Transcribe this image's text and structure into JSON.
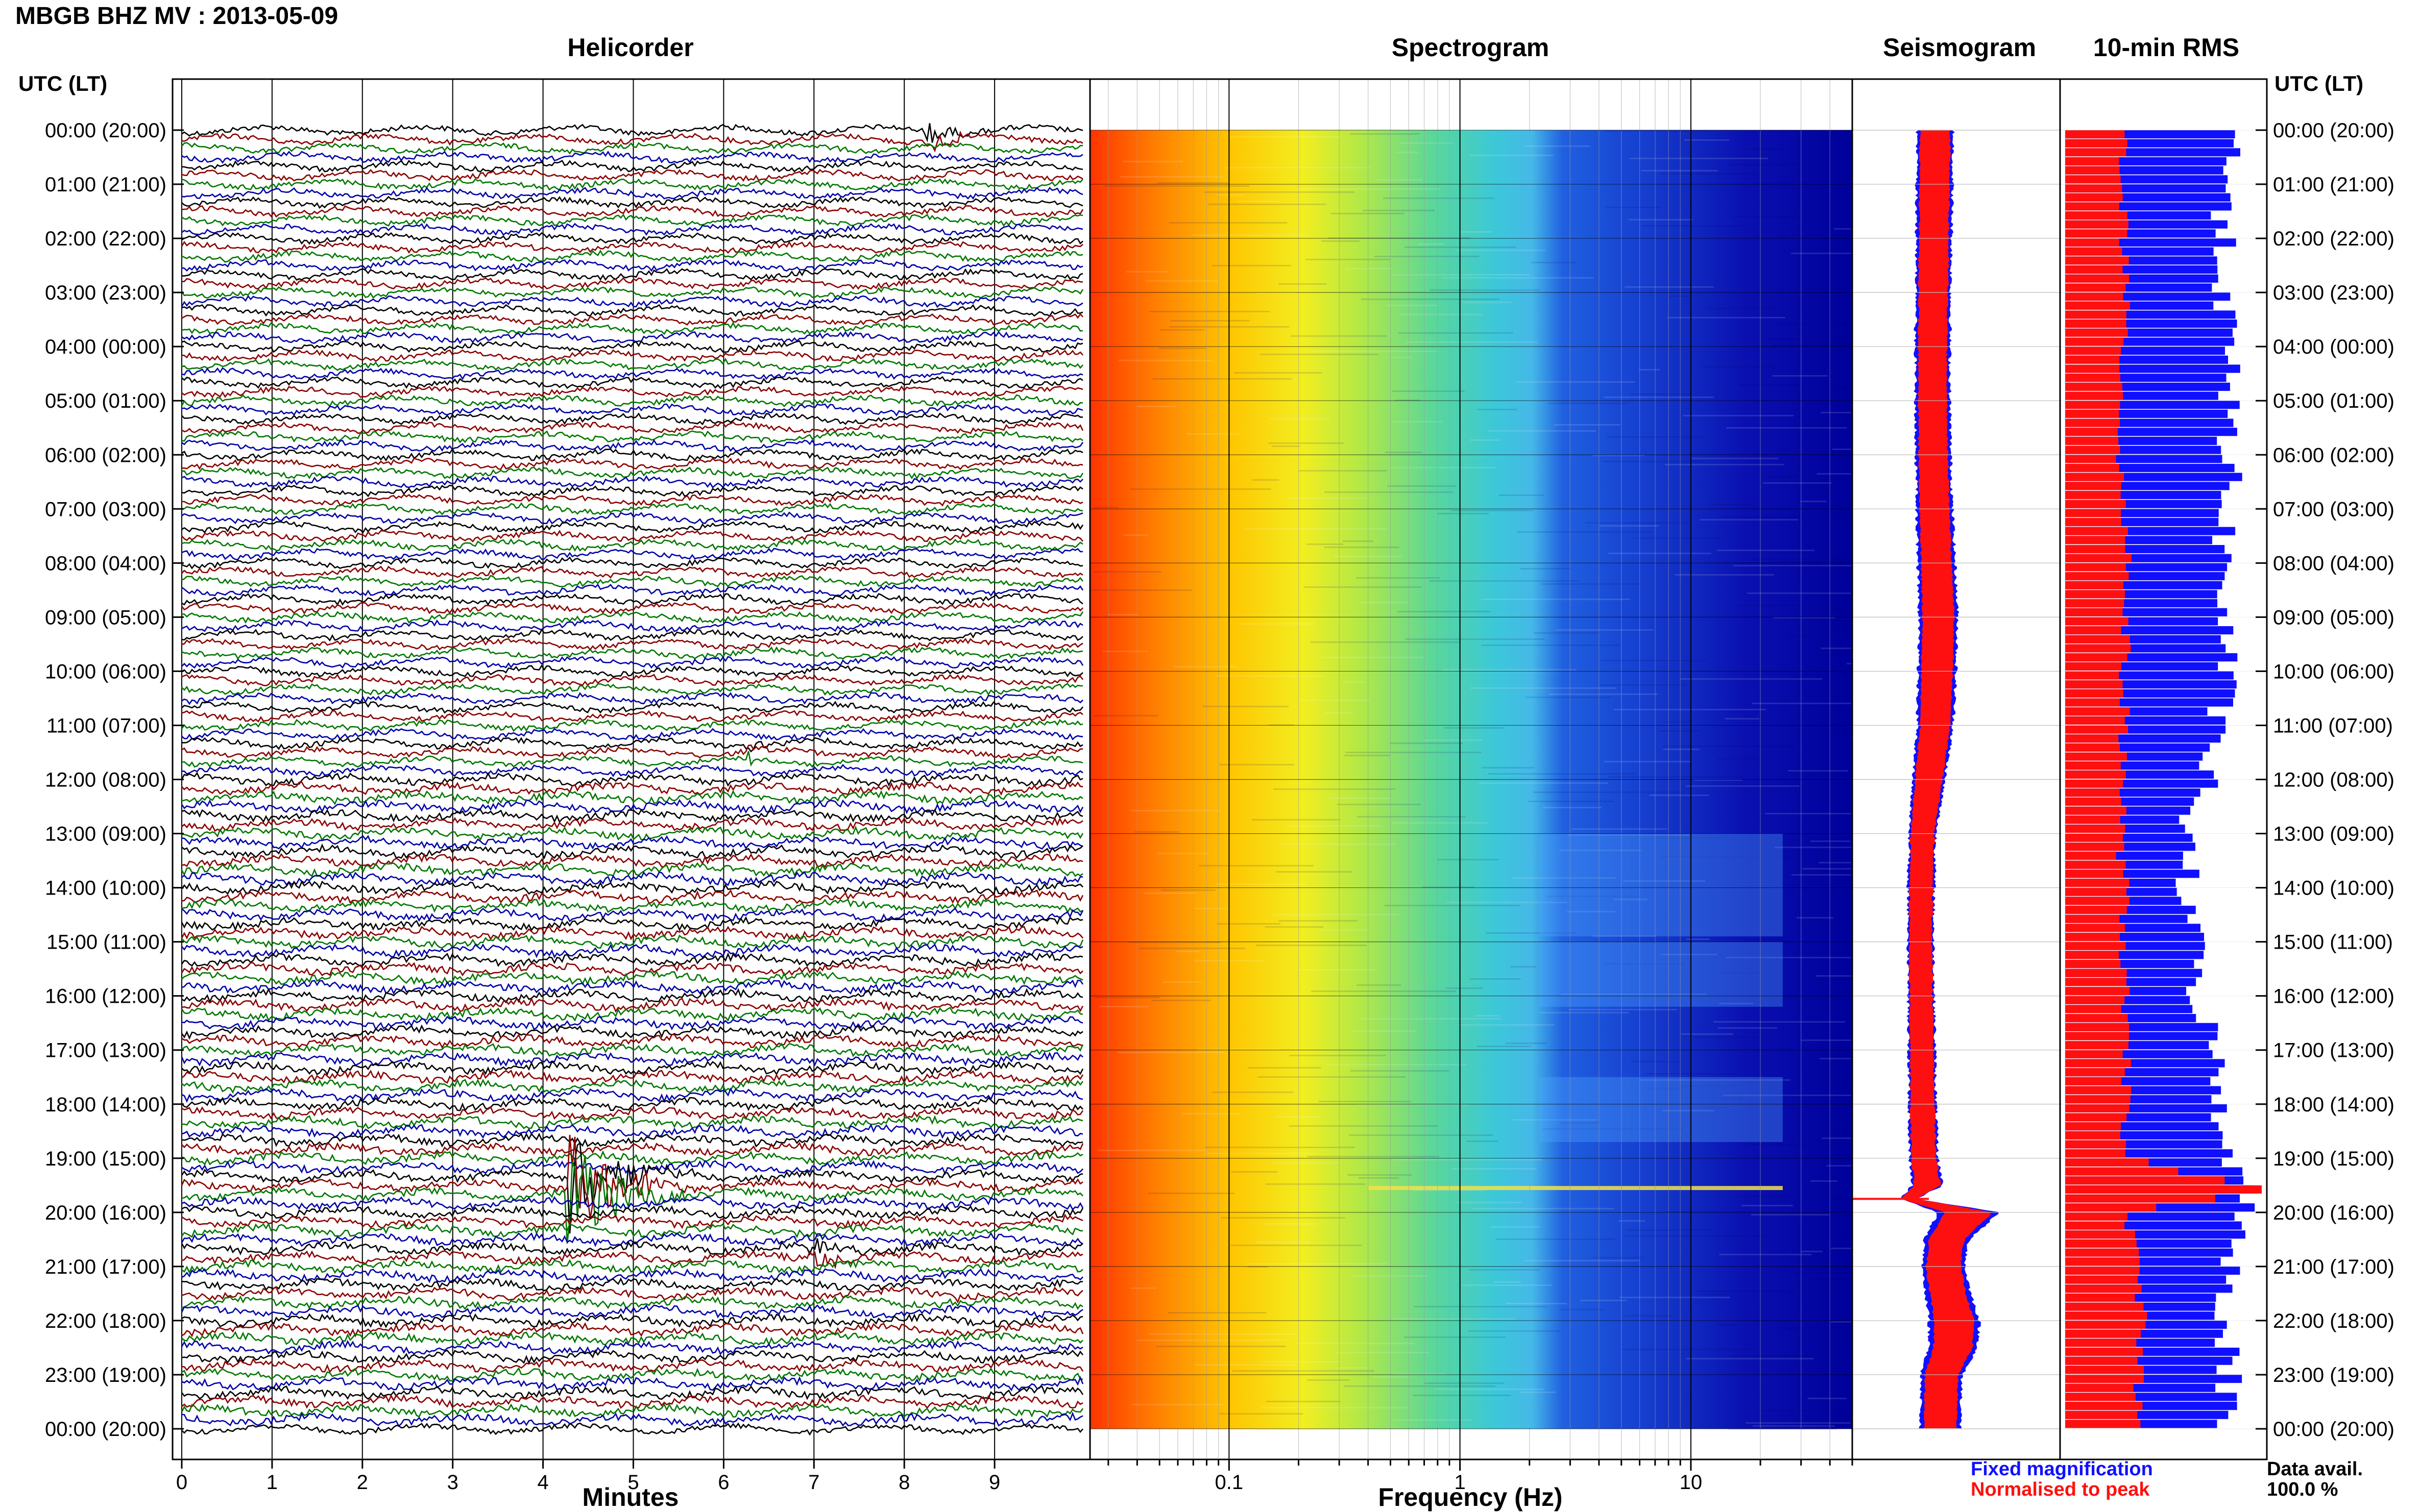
{
  "chart_data": {
    "type": "heatmap",
    "title": "MBGB BHZ MV : 2013-05-09",
    "time_axis_label": "UTC (LT)",
    "time_labels": [
      "00:00 (20:00)",
      "01:00 (21:00)",
      "02:00 (22:00)",
      "03:00 (23:00)",
      "04:00 (00:00)",
      "05:00 (01:00)",
      "06:00 (02:00)",
      "07:00 (03:00)",
      "08:00 (04:00)",
      "09:00 (05:00)",
      "10:00 (06:00)",
      "11:00 (07:00)",
      "12:00 (08:00)",
      "13:00 (09:00)",
      "14:00 (10:00)",
      "15:00 (11:00)",
      "16:00 (12:00)",
      "17:00 (13:00)",
      "18:00 (14:00)",
      "19:00 (15:00)",
      "20:00 (16:00)",
      "21:00 (17:00)",
      "22:00 (18:00)",
      "23:00 (19:00)",
      "00:00 (20:00)"
    ],
    "helicorder": {
      "title": "Helicorder",
      "xlabel": "Minutes",
      "x_ticks": [
        "0",
        "1",
        "2",
        "3",
        "4",
        "5",
        "6",
        "7",
        "8",
        "9"
      ],
      "xlim": [
        0,
        10
      ],
      "trace_colors": [
        "#000000",
        "#8b0000",
        "#007700",
        "#0000aa"
      ],
      "traces_per_hour": 6,
      "events": [
        {
          "hour": 0.05,
          "minute": 8.3,
          "amplitude": 1.2,
          "duration": 0.7
        },
        {
          "hour": 11.5,
          "minute": 6.3,
          "amplitude": 0.6,
          "duration": 0.5
        },
        {
          "hour": 19.5,
          "minute": 4.3,
          "amplitude": 6.0,
          "duration": 1.4
        },
        {
          "hour": 20.8,
          "minute": 7.0,
          "amplitude": 1.0,
          "duration": 0.8
        },
        {
          "hour": 21.6,
          "minute": 8.5,
          "amplitude": 0.5,
          "duration": 0.5
        }
      ]
    },
    "spectrogram": {
      "title": "Spectrogram",
      "xlabel": "Frequency (Hz)",
      "x_scale": "log",
      "xlim": [
        0.025,
        50
      ],
      "x_ticks": [
        {
          "value": 0.1,
          "label": "0.1"
        },
        {
          "value": 1,
          "label": "1"
        },
        {
          "value": 10,
          "label": "10"
        }
      ],
      "colormap": [
        "#ff3300",
        "#ff9900",
        "#ffee00",
        "#99ee33",
        "#33ccdd",
        "#2266ee",
        "#0000aa"
      ],
      "events": [
        {
          "hour": 19.55,
          "fmin": 0.4,
          "fmax": 25,
          "note": "high-energy band"
        }
      ]
    },
    "seismogram": {
      "title": "Seismogram",
      "legend": [
        {
          "name": "Fixed magnification",
          "color": "#1010ff"
        },
        {
          "name": "Normalised to peak",
          "color": "#ff1010"
        }
      ],
      "hours": [
        0,
        1,
        2,
        3,
        4,
        5,
        6,
        7,
        8,
        9,
        10,
        11,
        12,
        13,
        14,
        15,
        16,
        17,
        18,
        19,
        19.5,
        19.75,
        20,
        20.5,
        21,
        21.5,
        22,
        22.5,
        23,
        24
      ],
      "values": [
        0.42,
        0.41,
        0.4,
        0.39,
        0.38,
        0.38,
        0.39,
        0.41,
        0.44,
        0.47,
        0.45,
        0.42,
        0.32,
        0.22,
        0.2,
        0.19,
        0.2,
        0.21,
        0.22,
        0.24,
        0.3,
        0.0,
        0.95,
        0.6,
        0.55,
        0.62,
        0.72,
        0.7,
        0.52,
        0.5
      ]
    },
    "rms": {
      "title": "10-min RMS",
      "legend": [
        {
          "name": "Fixed magnification",
          "color": "#1010ff"
        },
        {
          "name": "Normalised to peak",
          "color": "#ff1010"
        }
      ],
      "hours": [
        0,
        2,
        4,
        6,
        8,
        10,
        12,
        13,
        14,
        15,
        16,
        17,
        18,
        19,
        19.6,
        20,
        21,
        22,
        23,
        24
      ],
      "fixed": [
        0.85,
        0.8,
        0.82,
        0.84,
        0.8,
        0.82,
        0.72,
        0.6,
        0.62,
        0.65,
        0.68,
        0.75,
        0.8,
        0.82,
        1.0,
        0.88,
        0.85,
        0.82,
        0.84,
        0.8
      ],
      "normalised": [
        0.3,
        0.3,
        0.3,
        0.28,
        0.32,
        0.3,
        0.3,
        0.28,
        0.3,
        0.3,
        0.3,
        0.3,
        0.32,
        0.3,
        1.0,
        0.32,
        0.36,
        0.4,
        0.38,
        0.36
      ],
      "data_availability_label": "Data avail.",
      "data_availability": "100.0 %"
    }
  }
}
